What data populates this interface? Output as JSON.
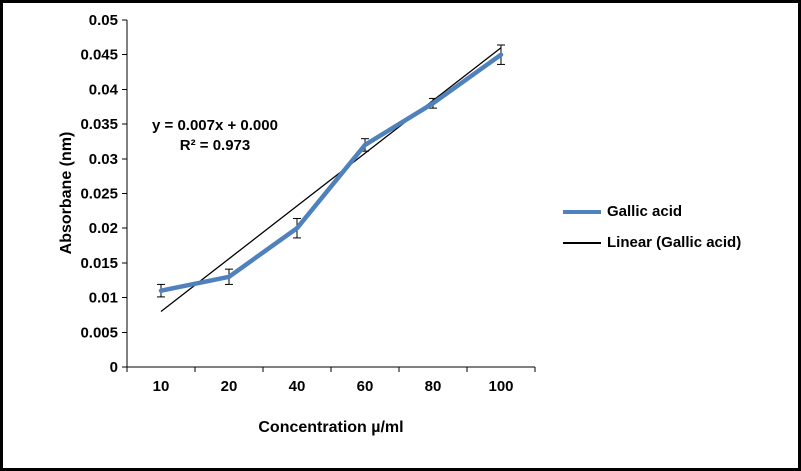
{
  "chart_data": {
    "type": "line",
    "title": "",
    "xlabel": "Concentration µ/ml",
    "ylabel": "Absorbane (nm)",
    "categories": [
      "10",
      "20",
      "40",
      "60",
      "80",
      "100"
    ],
    "series": [
      {
        "name": "Gallic acid",
        "values": [
          0.011,
          0.013,
          0.02,
          0.032,
          0.038,
          0.045
        ],
        "error": [
          0.0009,
          0.0011,
          0.0014,
          0.0009,
          0.0007,
          0.0014
        ],
        "color": "#4F81BD"
      }
    ],
    "trendline": {
      "name": "Linear (Gallic acid)",
      "equation": "y = 0.007x + 0.000",
      "r_squared": "R² = 0.973",
      "start_value": 0.008,
      "end_value": 0.046,
      "color": "#000000"
    },
    "ylim": [
      0,
      0.05
    ],
    "ytick_step": 0.005,
    "grid": false,
    "legend_position": "right",
    "axis_color": "#000000",
    "text_color": "#000000"
  }
}
